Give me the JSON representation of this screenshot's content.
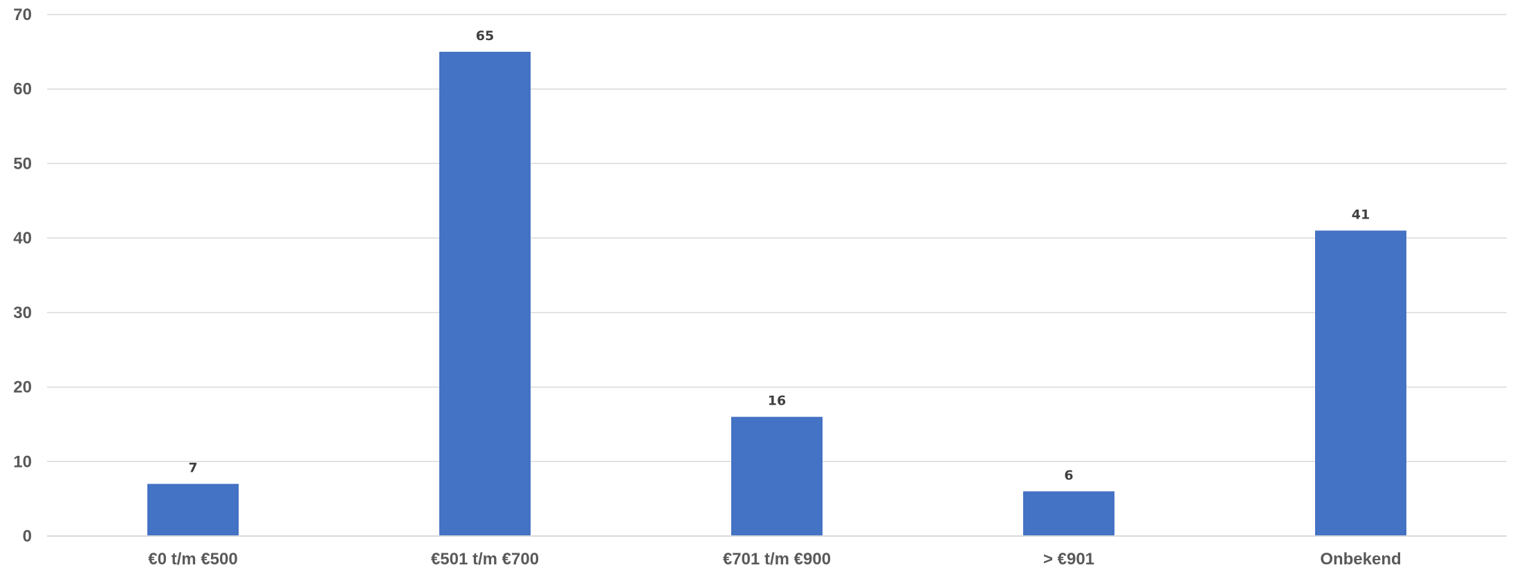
{
  "chart_data": {
    "type": "bar",
    "categories": [
      "€0 t/m €500",
      "€501 t/m €700",
      "€701 t/m €900",
      "> €901",
      "Onbekend"
    ],
    "values": [
      7,
      65,
      16,
      6,
      41
    ],
    "data_labels": [
      "7",
      "65",
      "16",
      "6",
      "41"
    ],
    "title": "",
    "xlabel": "",
    "ylabel": "",
    "ylim": [
      0,
      70
    ],
    "yticks": [
      0,
      10,
      20,
      30,
      40,
      50,
      60,
      70
    ],
    "ytick_labels": [
      "0",
      "10",
      "20",
      "30",
      "40",
      "50",
      "60",
      "70"
    ],
    "grid": true,
    "legend": "none",
    "colors": {
      "bar": "#4472C4",
      "grid": "#D9D9D9",
      "tick_text": "#595959",
      "data_label_text": "#404040"
    }
  }
}
